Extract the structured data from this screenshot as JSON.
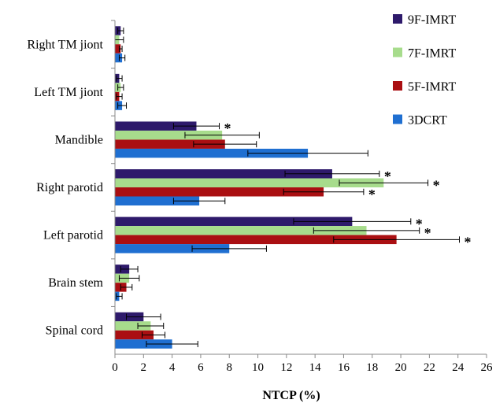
{
  "chart_data": {
    "type": "bar",
    "orientation": "horizontal",
    "title": "",
    "xlabel": "NTCP (%)",
    "ylabel": "",
    "xlim": [
      0,
      26
    ],
    "x_ticks": [
      "0",
      "2",
      "4",
      "6",
      "8",
      "10",
      "12",
      "14",
      "16",
      "18",
      "20",
      "22",
      "24",
      "26"
    ],
    "grid": false,
    "legend_position": "top-right",
    "categories": [
      "Right TM jiont",
      "Left TM jiont",
      "Mandible",
      "Right parotid",
      "Left parotid",
      "Brain stem",
      "Spinal cord"
    ],
    "series": [
      {
        "name": "9F-IMRT",
        "color": "#2e1a6b",
        "values": [
          0.4,
          0.3,
          5.7,
          15.2,
          16.6,
          1.0,
          2.0
        ],
        "errors": [
          0.2,
          0.2,
          1.6,
          3.3,
          4.1,
          0.6,
          1.2
        ],
        "significance": [
          "",
          "",
          "*",
          "*",
          "*",
          "",
          ""
        ]
      },
      {
        "name": "7F-IMRT",
        "color": "#a7dc8c",
        "values": [
          0.3,
          0.4,
          7.5,
          18.8,
          17.6,
          1.0,
          2.5
        ],
        "errors": [
          0.3,
          0.2,
          2.6,
          3.1,
          3.7,
          0.7,
          0.9
        ],
        "significance": [
          "",
          "",
          "",
          "*",
          "*",
          "",
          ""
        ]
      },
      {
        "name": "5F-IMRT",
        "color": "#aa0f12",
        "values": [
          0.4,
          0.3,
          7.7,
          14.6,
          19.7,
          0.8,
          2.7
        ],
        "errors": [
          0.1,
          0.2,
          2.2,
          2.8,
          4.4,
          0.4,
          0.8
        ],
        "significance": [
          "",
          "",
          "",
          "*",
          "*",
          "",
          ""
        ]
      },
      {
        "name": "3DCRT",
        "color": "#1f6fd1",
        "values": [
          0.5,
          0.5,
          13.5,
          5.9,
          8.0,
          0.3,
          4.0
        ],
        "errors": [
          0.2,
          0.3,
          4.2,
          1.8,
          2.6,
          0.2,
          1.8
        ],
        "significance": [
          "",
          "",
          "",
          "",
          "",
          "",
          ""
        ]
      }
    ]
  }
}
